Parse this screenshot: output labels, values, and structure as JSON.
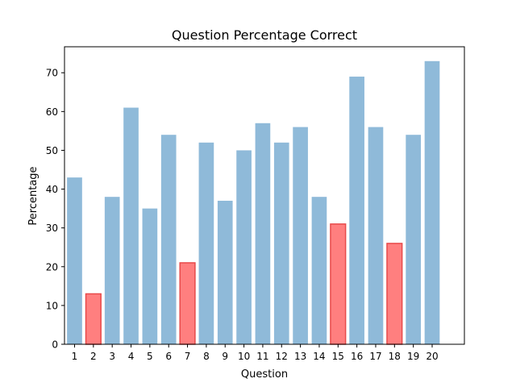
{
  "chart_data": {
    "type": "bar",
    "title": "Question Percentage Correct",
    "xlabel": "Question",
    "ylabel": "Percentage",
    "categories": [
      "1",
      "2",
      "3",
      "4",
      "5",
      "6",
      "7",
      "8",
      "9",
      "10",
      "11",
      "12",
      "13",
      "14",
      "15",
      "16",
      "17",
      "18",
      "19",
      "20"
    ],
    "values": [
      43,
      13,
      38,
      61,
      35,
      54,
      21,
      52,
      37,
      50,
      57,
      52,
      56,
      38,
      31,
      69,
      56,
      26,
      54,
      73
    ],
    "highlighted": [
      false,
      true,
      false,
      false,
      false,
      false,
      true,
      false,
      false,
      false,
      false,
      false,
      false,
      false,
      true,
      false,
      false,
      true,
      false,
      false
    ],
    "ylim": [
      0,
      76.7
    ],
    "yticks": [
      0,
      10,
      20,
      30,
      40,
      50,
      60,
      70
    ],
    "grid": false,
    "colors": {
      "default_bar": "#8fbad9",
      "highlight_bar": "#ff7f7f",
      "highlight_edge": "#e84a4a"
    }
  }
}
